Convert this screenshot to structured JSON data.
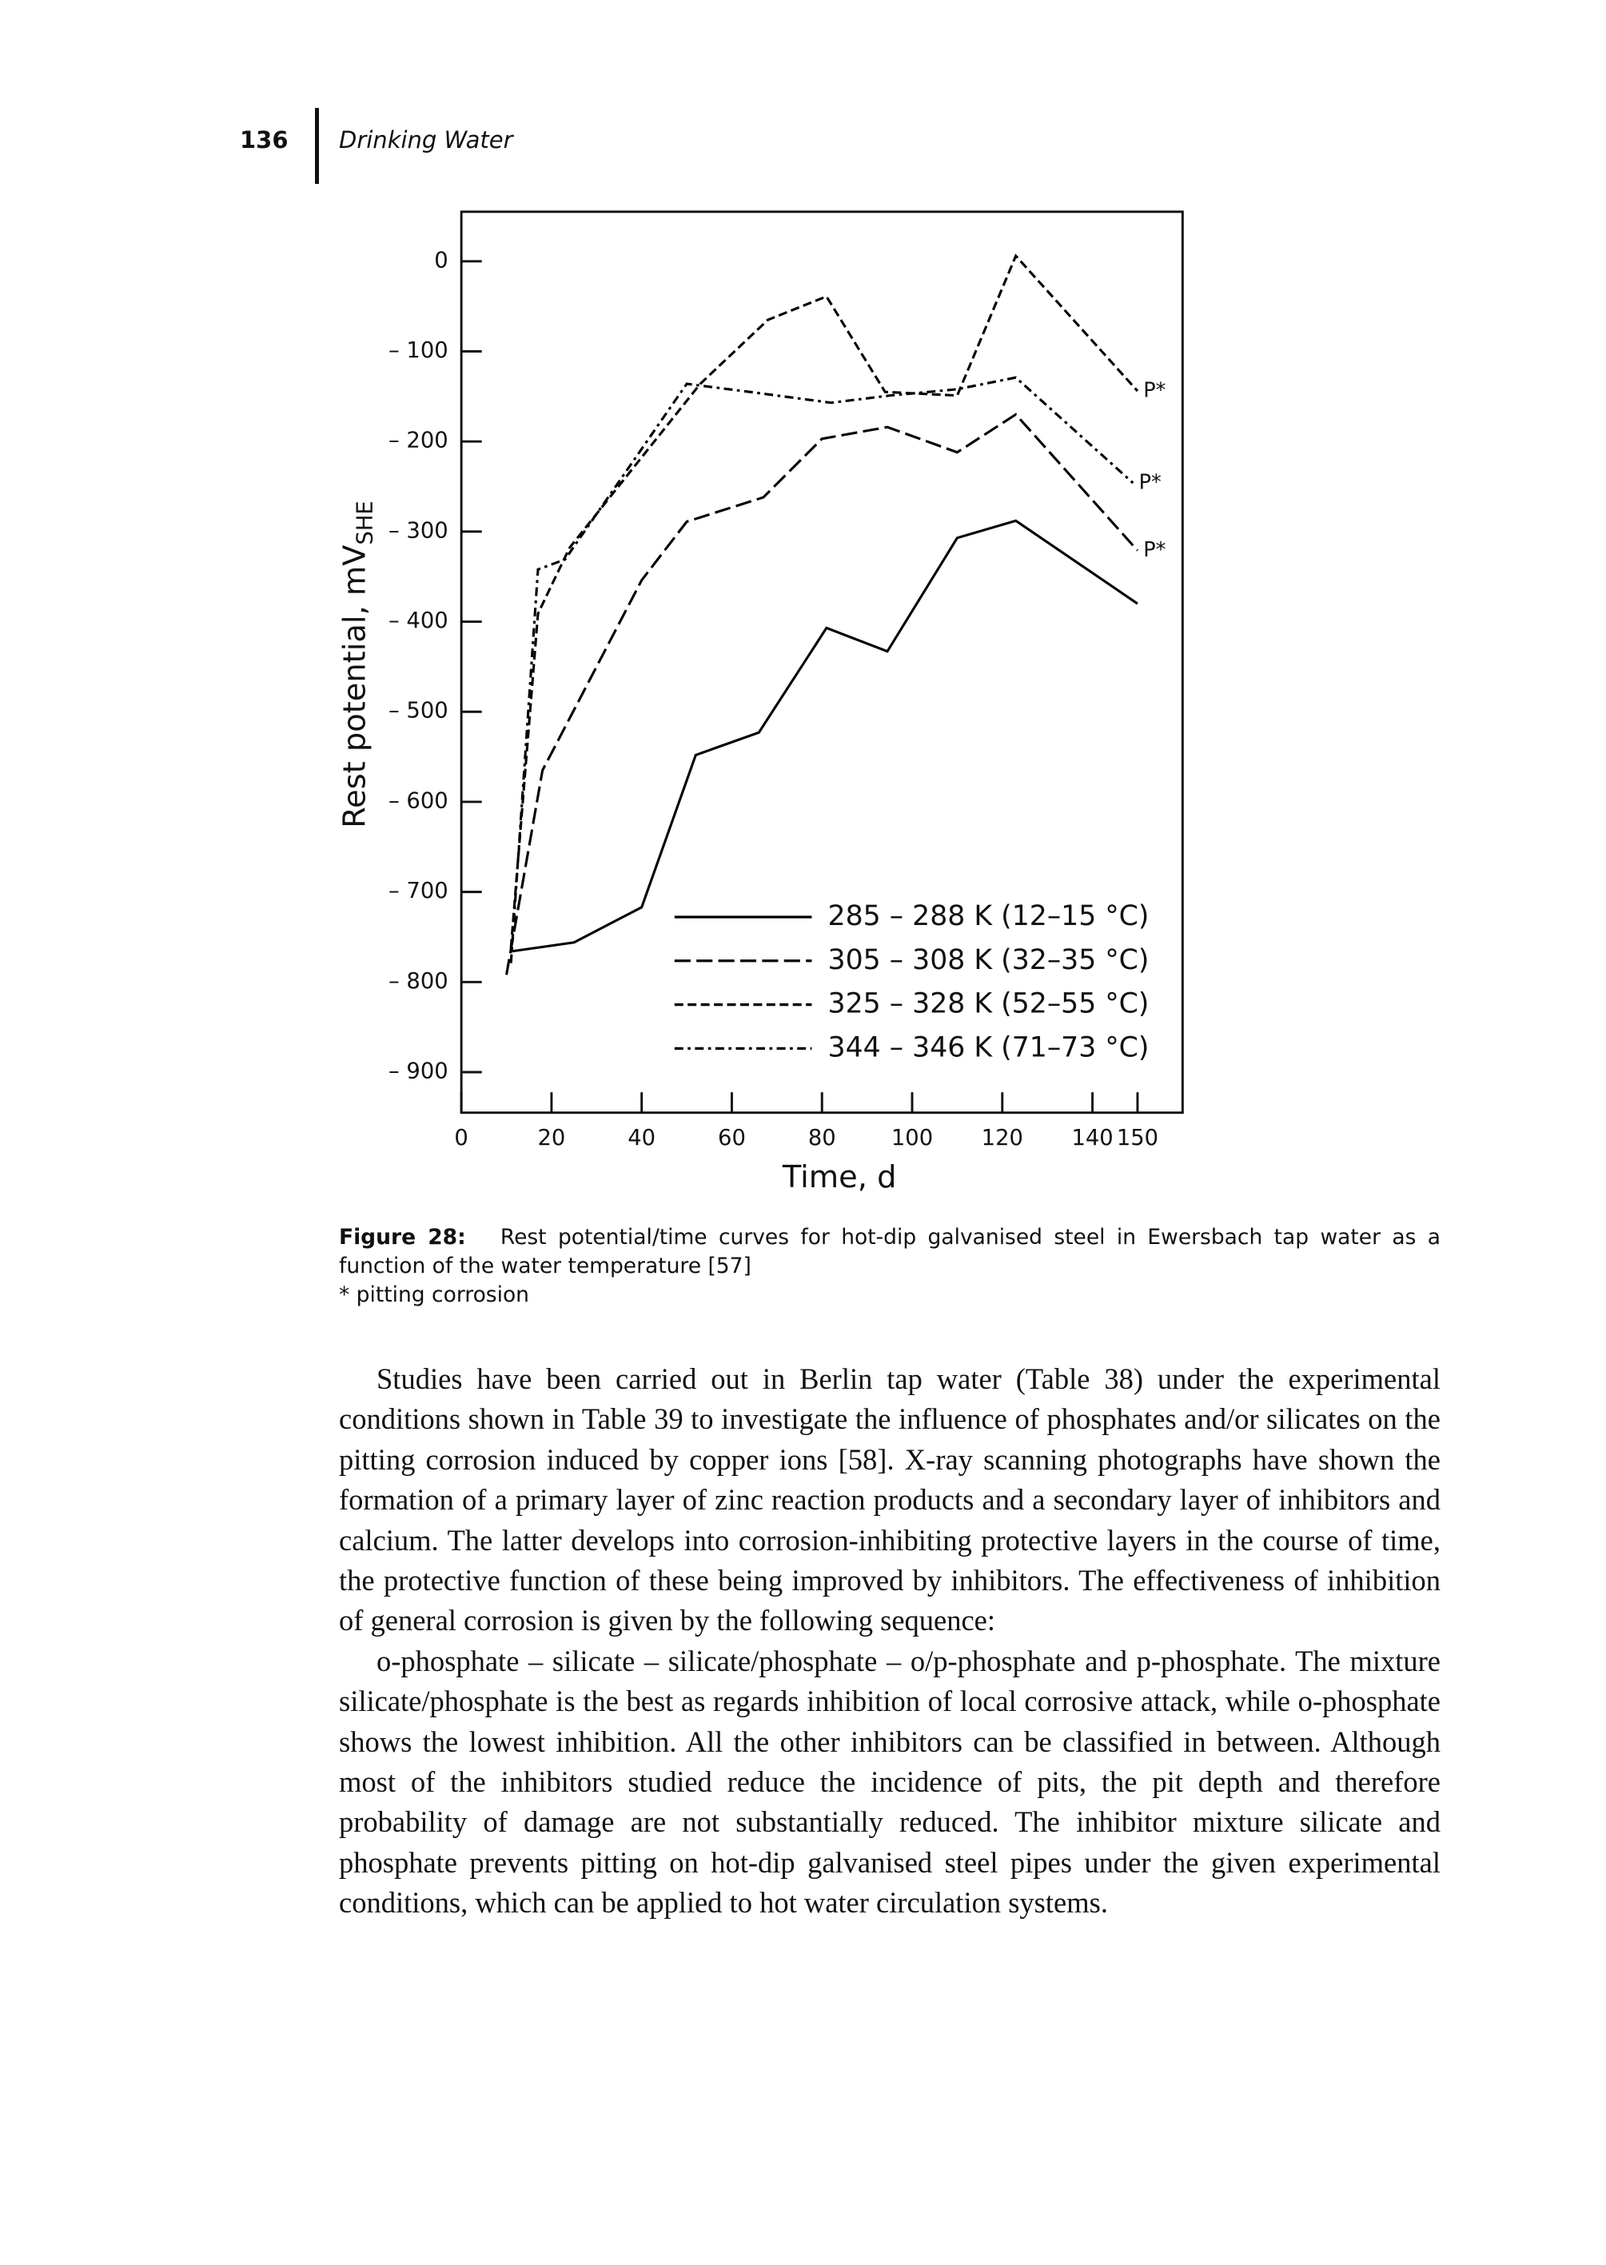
{
  "header": {
    "page_number": "136",
    "running_title": "Drinking Water"
  },
  "chart_data": {
    "type": "line",
    "y_label": "Rest potential, mV",
    "y_label_sub": "SHE",
    "x_label": "Time, d",
    "xlim": [
      0,
      160
    ],
    "xticks": [
      0,
      20,
      40,
      60,
      80,
      100,
      120,
      140,
      150
    ],
    "ylim": [
      -945,
      55
    ],
    "yticks": [
      0,
      {
        "value": -100,
        "label": "– 100"
      },
      {
        "value": -200,
        "label": "– 200"
      },
      {
        "value": -300,
        "label": "– 300"
      },
      {
        "value": -400,
        "label": "– 400"
      },
      {
        "value": -500,
        "label": "– 500"
      },
      {
        "value": -600,
        "label": "– 600"
      },
      {
        "value": -700,
        "label": "– 700"
      },
      {
        "value": -800,
        "label": "– 800"
      },
      {
        "value": -900,
        "label": "– 900"
      }
    ],
    "grid": false,
    "series": [
      {
        "name": "285 – 288 K (12–15 °C)",
        "color": "#000000",
        "dash": "solid",
        "x": [
          11,
          25,
          40,
          52,
          66,
          81,
          94.5,
          110,
          123,
          150
        ],
        "values": [
          -766,
          -756,
          -717,
          -548,
          -523,
          -407,
          -433,
          -307,
          -288,
          -380
        ]
      },
      {
        "name": "305 – 308 K (32–35 °C)",
        "color": "#000000",
        "dash": "long-dash",
        "end_label": "P*",
        "x": [
          10,
          18,
          40,
          50,
          67,
          80,
          94.5,
          110,
          123,
          150
        ],
        "values": [
          -792,
          -565,
          -354,
          -289,
          -262,
          -197,
          -184,
          -212,
          -170,
          -321
        ]
      },
      {
        "name": "325 – 328 K (52–55 °C)",
        "color": "#000000",
        "dash": "short-dash",
        "end_label": "P*",
        "x": [
          11,
          17,
          24,
          53,
          68,
          81,
          94,
          110,
          123,
          150
        ],
        "values": [
          -762,
          -391,
          -318,
          -136,
          -65,
          -39,
          -145,
          -149,
          6,
          -144
        ]
      },
      {
        "name": "344 – 346 K (71–73 °C)",
        "color": "#000000",
        "dash": "dash-dot",
        "end_label": "P*",
        "x": [
          11,
          17,
          23,
          50,
          64,
          82,
          95,
          110,
          123,
          149
        ],
        "values": [
          -779,
          -342,
          -331,
          -136,
          -145,
          -157,
          -149,
          -142,
          -129,
          -246
        ]
      }
    ]
  },
  "caption": {
    "label": "Figure 28:",
    "text": "Rest potential/time curves for hot-dip galvanised steel in Ewersbach tap water as a function of the water temperature [57]",
    "note": "* pitting corrosion"
  },
  "body": [
    "Studies have been carried out in Berlin tap water (Table 38) under the experimental conditions shown in Table 39 to investigate the influence of phosphates and/or silicates on the pitting corrosion induced by copper ions [58]. X-ray scanning photographs have shown the formation of a primary layer of zinc reaction products and a secondary layer of inhibitors and calcium. The latter develops into corrosion-inhibiting protective layers in the course of time, the protective function of these being improved by inhibitors. The effectiveness of inhibition of general corrosion is given by the following sequence:",
    "o-phosphate – silicate – silicate/phosphate – o/p-phosphate and p-phosphate. The mixture silicate/phosphate is the best as regards inhibition of local corrosive attack, while o-phosphate shows the lowest inhibition. All the other inhibitors can be classified in between. Although most of the inhibitors studied reduce the incidence of pits, the pit depth and therefore probability of damage are not substantially reduced. The inhibitor mixture silicate and phosphate prevents pitting on hot-dip galvanised steel pipes under the given experimental conditions, which can be applied to hot water circulation systems."
  ]
}
